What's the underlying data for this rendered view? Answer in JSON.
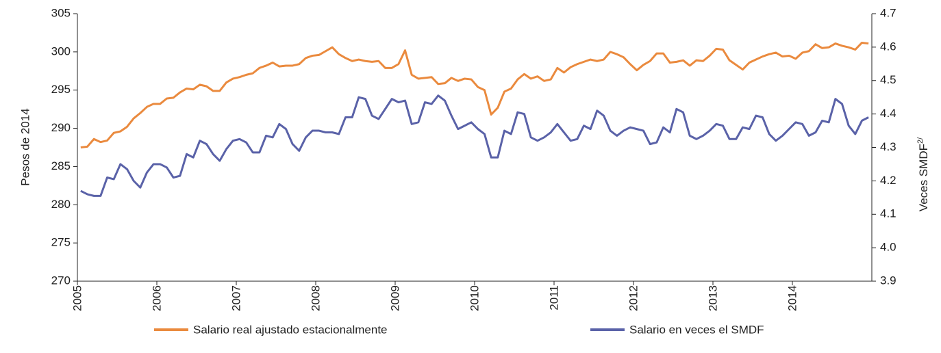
{
  "chart_data": {
    "type": "line",
    "categories": [
      "2005",
      null,
      null,
      null,
      null,
      null,
      null,
      null,
      null,
      null,
      null,
      null,
      "2006",
      null,
      null,
      null,
      null,
      null,
      null,
      null,
      null,
      null,
      null,
      null,
      "2007",
      null,
      null,
      null,
      null,
      null,
      null,
      null,
      null,
      null,
      null,
      null,
      "2008",
      null,
      null,
      null,
      null,
      null,
      null,
      null,
      null,
      null,
      null,
      null,
      "2009",
      null,
      null,
      null,
      null,
      null,
      null,
      null,
      null,
      null,
      null,
      null,
      "2010",
      null,
      null,
      null,
      null,
      null,
      null,
      null,
      null,
      null,
      null,
      null,
      "2011",
      null,
      null,
      null,
      null,
      null,
      null,
      null,
      null,
      null,
      null,
      null,
      "2012",
      null,
      null,
      null,
      null,
      null,
      null,
      null,
      null,
      null,
      null,
      null,
      "2013",
      null,
      null,
      null,
      null,
      null,
      null,
      null,
      null,
      null,
      null,
      null,
      "2014",
      null,
      null,
      null,
      null,
      null,
      null,
      null,
      null,
      null,
      null,
      null
    ],
    "series": [
      {
        "name": "Salario real ajustado estacionalmente",
        "color": "#ea8a3e",
        "axis": "y",
        "values": [
          287.5,
          287.6,
          288.6,
          288.2,
          288.4,
          289.4,
          289.6,
          290.2,
          291.3,
          292.0,
          292.8,
          293.2,
          293.2,
          293.9,
          294.0,
          294.7,
          295.2,
          295.1,
          295.7,
          295.5,
          294.9,
          294.9,
          296.0,
          296.5,
          296.7,
          297.0,
          297.2,
          297.9,
          298.2,
          298.6,
          298.1,
          298.2,
          298.2,
          298.4,
          299.2,
          299.5,
          299.6,
          300.1,
          300.6,
          299.7,
          299.2,
          298.8,
          299.0,
          298.8,
          298.7,
          298.8,
          297.9,
          297.9,
          298.4,
          300.2,
          297.0,
          296.5,
          296.6,
          296.7,
          295.8,
          295.9,
          296.6,
          296.2,
          296.5,
          296.4,
          295.4,
          295.0,
          291.8,
          292.7,
          294.8,
          295.2,
          296.4,
          297.1,
          296.5,
          296.8,
          296.2,
          296.4,
          297.9,
          297.3,
          298.0,
          298.4,
          298.7,
          299.0,
          298.8,
          299.0,
          300.0,
          299.7,
          299.3,
          298.4,
          297.6,
          298.3,
          298.8,
          299.8,
          299.8,
          298.6,
          298.7,
          298.9,
          298.2,
          298.9,
          298.8,
          299.5,
          300.4,
          300.3,
          298.9,
          298.3,
          297.7,
          298.6,
          299.0,
          299.4,
          299.7,
          299.9,
          299.4,
          299.5,
          299.1,
          299.9,
          300.1,
          301.0,
          300.5,
          300.6,
          301.1,
          300.8,
          300.6,
          300.3,
          301.2,
          301.1
        ]
      },
      {
        "name": "Salario en veces el SMDF",
        "color": "#5a62a8",
        "axis": "y2",
        "values": [
          4.17,
          4.16,
          4.155,
          4.155,
          4.21,
          4.205,
          4.25,
          4.235,
          4.2,
          4.18,
          4.225,
          4.25,
          4.25,
          4.24,
          4.21,
          4.215,
          4.28,
          4.27,
          4.32,
          4.31,
          4.28,
          4.26,
          4.295,
          4.32,
          4.325,
          4.315,
          4.285,
          4.285,
          4.335,
          4.33,
          4.37,
          4.355,
          4.31,
          4.29,
          4.33,
          4.35,
          4.35,
          4.345,
          4.345,
          4.34,
          4.39,
          4.39,
          4.45,
          4.445,
          4.395,
          4.385,
          4.415,
          4.445,
          4.435,
          4.44,
          4.37,
          4.375,
          4.435,
          4.43,
          4.455,
          4.44,
          4.395,
          4.355,
          4.365,
          4.375,
          4.355,
          4.34,
          4.27,
          4.27,
          4.35,
          4.34,
          4.405,
          4.4,
          4.33,
          4.32,
          4.33,
          4.345,
          4.37,
          4.345,
          4.32,
          4.325,
          4.365,
          4.355,
          4.41,
          4.395,
          4.35,
          4.335,
          4.35,
          4.36,
          4.355,
          4.35,
          4.31,
          4.315,
          4.36,
          4.345,
          4.415,
          4.405,
          4.335,
          4.325,
          4.335,
          4.35,
          4.37,
          4.365,
          4.325,
          4.325,
          4.36,
          4.355,
          4.395,
          4.39,
          4.34,
          4.32,
          4.335,
          4.355,
          4.375,
          4.37,
          4.335,
          4.345,
          4.38,
          4.375,
          4.445,
          4.43,
          4.365,
          4.34,
          4.38,
          4.39
        ]
      }
    ],
    "ylabel": "Pesos de 2014",
    "y2label": "Veces SMDF",
    "y2label_superscript": "2/",
    "ylim": [
      270,
      305
    ],
    "yticks": [
      270,
      275,
      280,
      285,
      290,
      295,
      300,
      305
    ],
    "y2lim": [
      3.9,
      4.7
    ],
    "y2ticks": [
      3.9,
      {
        "value": 4,
        "label": "4.0"
      },
      4.1,
      4.2,
      4.3,
      4.4,
      4.5,
      4.6,
      4.7
    ],
    "legend": "bottom"
  }
}
